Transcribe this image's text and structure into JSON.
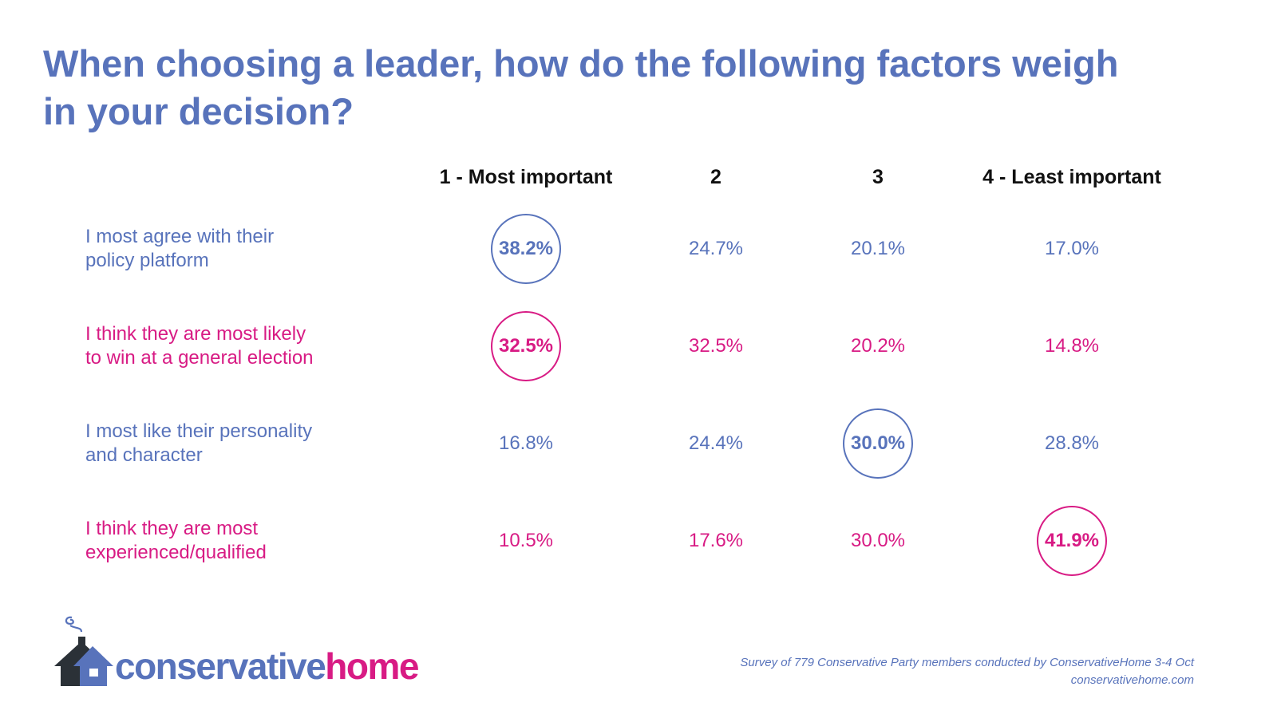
{
  "title": "When choosing a leader, how do the following factors weigh in your decision?",
  "colors": {
    "blue": "#5873bb",
    "magenta": "#d81b84",
    "dark": "#2b3137"
  },
  "chart_data": {
    "type": "table",
    "title": "When choosing a leader, how do the following factors weigh in your decision?",
    "columns": [
      "1 - Most important",
      "2",
      "3",
      "4 - Least important"
    ],
    "rows": [
      {
        "label": "I most agree with their policy platform",
        "label_lines": [
          "I most agree with their",
          "policy platform"
        ],
        "color": "blue",
        "values": [
          "38.2%",
          "24.7%",
          "20.1%",
          "17.0%"
        ],
        "numeric": [
          38.2,
          24.7,
          20.1,
          17.0
        ],
        "highlight_col": 0
      },
      {
        "label": "I think they are most likely to win at a general election",
        "label_lines": [
          "I think they are most likely",
          "to win at a general election"
        ],
        "color": "magenta",
        "values": [
          "32.5%",
          "32.5%",
          "20.2%",
          "14.8%"
        ],
        "numeric": [
          32.5,
          32.5,
          20.2,
          14.8
        ],
        "highlight_col": 0
      },
      {
        "label": "I most like their personality and character",
        "label_lines": [
          "I most like their personality",
          "and character"
        ],
        "color": "blue",
        "values": [
          "16.8%",
          "24.4%",
          "30.0%",
          "28.8%"
        ],
        "numeric": [
          16.8,
          24.4,
          30.0,
          28.8
        ],
        "highlight_col": 2
      },
      {
        "label": "I think they are most experienced/qualified",
        "label_lines": [
          "I think they are most",
          "experienced/qualified"
        ],
        "color": "magenta",
        "values": [
          "10.5%",
          "17.6%",
          "30.0%",
          "41.9%"
        ],
        "numeric": [
          10.5,
          17.6,
          30.0,
          41.9
        ],
        "highlight_col": 3
      }
    ]
  },
  "logo": {
    "part1": "conservative",
    "part2": "home"
  },
  "footer": {
    "note": "Survey of 779 Conservative Party members conducted by ConservativeHome 3-4 Oct",
    "url": "conservativehome.com"
  }
}
